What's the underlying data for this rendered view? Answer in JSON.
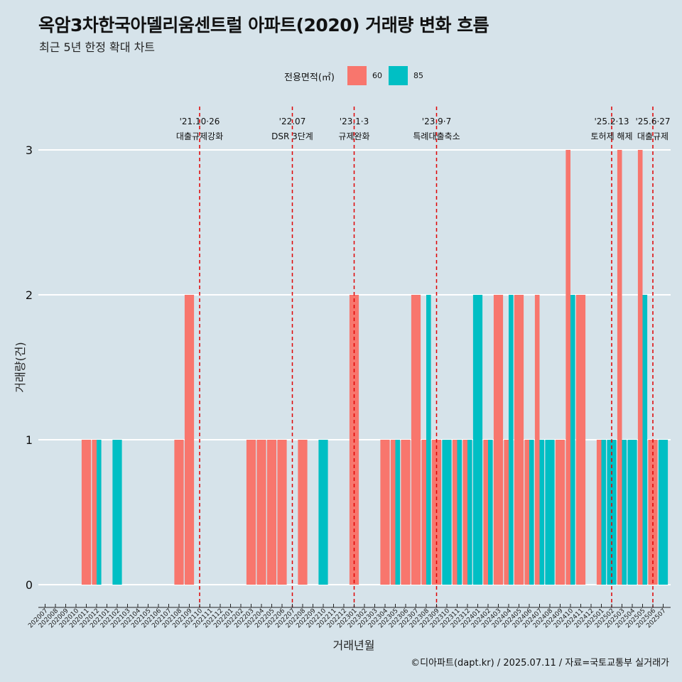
{
  "title": "옥암3차한국아델리움센트럴 아파트(2020) 거래량 변화 흐름",
  "subtitle": "최근 5년 한정 확대 차트",
  "caption": "©디아파트(dapt.kr) / 2025.07.11 / 자료=국토교통부 실거래가",
  "colors": {
    "s60": "#F8766D",
    "s85": "#00BFC4",
    "event_line": "#e00000",
    "background": "#d6e3ea"
  },
  "chart_data": {
    "type": "bar",
    "xlabel": "거래년월",
    "ylabel": "거래량(건)",
    "ylim": [
      0,
      3
    ],
    "yticks": [
      0,
      1,
      2,
      3
    ],
    "grid": true,
    "legend": {
      "title": "전용면적(㎡)",
      "position": "top"
    },
    "categories": [
      "202007",
      "202008",
      "202009",
      "202010",
      "202011",
      "202012",
      "202101",
      "202102",
      "202103",
      "202104",
      "202105",
      "202106",
      "202107",
      "202108",
      "202109",
      "202110",
      "202111",
      "202112",
      "202201",
      "202202",
      "202203",
      "202204",
      "202205",
      "202206",
      "202207",
      "202208",
      "202209",
      "202210",
      "202211",
      "202212",
      "202301",
      "202302",
      "202303",
      "202304",
      "202305",
      "202306",
      "202307",
      "202308",
      "202309",
      "202310",
      "202311",
      "202312",
      "202401",
      "202402",
      "202403",
      "202404",
      "202405",
      "202406",
      "202407",
      "202408",
      "202409",
      "202410",
      "202411",
      "202412",
      "202501",
      "202502",
      "202503",
      "202504",
      "202505",
      "202506",
      "202507"
    ],
    "series": [
      {
        "name": "60",
        "values": [
          0,
          0,
          0,
          0,
          1,
          1,
          0,
          0,
          0,
          0,
          0,
          0,
          0,
          1,
          2,
          0,
          0,
          0,
          0,
          0,
          1,
          1,
          1,
          1,
          0,
          1,
          0,
          0,
          0,
          0,
          2,
          0,
          0,
          1,
          1,
          1,
          2,
          1,
          1,
          0,
          1,
          1,
          0,
          1,
          2,
          1,
          2,
          1,
          2,
          0,
          1,
          3,
          2,
          0,
          1,
          0,
          3,
          0,
          3,
          1,
          0
        ]
      },
      {
        "name": "85",
        "values": [
          0,
          0,
          0,
          0,
          0,
          1,
          0,
          1,
          0,
          0,
          0,
          0,
          0,
          0,
          0,
          0,
          0,
          0,
          0,
          0,
          0,
          0,
          0,
          0,
          0,
          0,
          0,
          1,
          0,
          0,
          0,
          0,
          0,
          0,
          1,
          0,
          0,
          2,
          0,
          1,
          1,
          1,
          2,
          1,
          0,
          2,
          0,
          1,
          1,
          1,
          0,
          2,
          0,
          0,
          1,
          1,
          1,
          1,
          2,
          0,
          1
        ]
      }
    ],
    "events": [
      {
        "date": "'21.10·26",
        "label": "대출규제강화",
        "x": "202110"
      },
      {
        "date": "'22.07",
        "label": "DSR 3단계",
        "x": "202207"
      },
      {
        "date": "'23.1·3",
        "label": "규제완화",
        "x": "202301"
      },
      {
        "date": "'23.9·7",
        "label": "특례대출축소",
        "x": "202309"
      },
      {
        "date": "'25.2·13",
        "label": "토허제 해제",
        "x": "202502"
      },
      {
        "date": "'25.6·27",
        "label": "대출규제",
        "x": "202506"
      }
    ]
  }
}
